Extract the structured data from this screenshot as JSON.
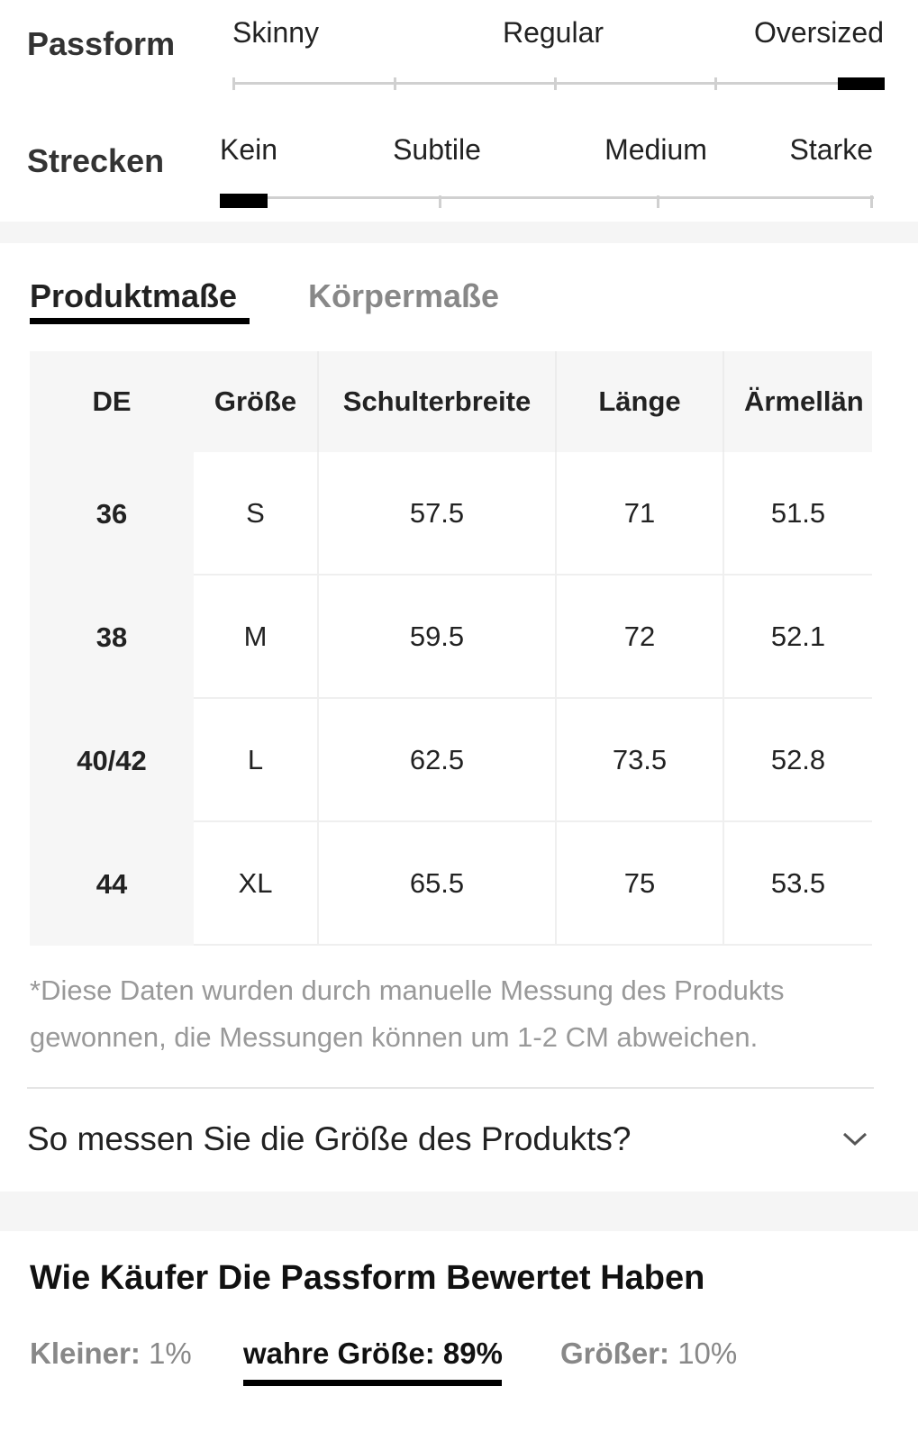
{
  "fit": {
    "label": "Passform",
    "options": [
      "Skinny",
      "Regular",
      "Oversized"
    ]
  },
  "stretch": {
    "label": "Strecken",
    "options": [
      "Kein",
      "Subtile",
      "Medium",
      "Starke"
    ]
  },
  "tabs": [
    "Produktmaße",
    "Körpermaße"
  ],
  "table": {
    "header": [
      "DE",
      "Größe",
      "Schulterbreite",
      "Länge",
      "Ärmellän"
    ],
    "rows": [
      [
        "36",
        "S",
        "57.5",
        "71",
        "51.5"
      ],
      [
        "38",
        "M",
        "59.5",
        "72",
        "52.1"
      ],
      [
        "40/42",
        "L",
        "62.5",
        "73.5",
        "52.8"
      ],
      [
        "44",
        "XL",
        "65.5",
        "75",
        "53.5"
      ]
    ]
  },
  "note": "*Diese Daten wurden durch manuelle Messung des Produkts gewonnen, die Messungen können um 1-2 CM abweichen.",
  "how_to_measure": "So messen Sie die Größe des Produkts?",
  "reviews": {
    "title": "Wie Käufer Die Passform Bewertet Haben",
    "items": [
      {
        "label": "Kleiner:",
        "value": "1%"
      },
      {
        "label": "wahre Größe:",
        "value": "89%"
      },
      {
        "label": "Größer:",
        "value": "10%"
      }
    ]
  }
}
